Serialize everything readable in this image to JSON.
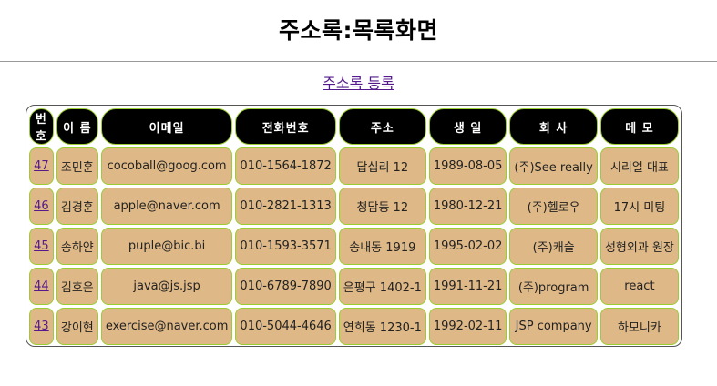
{
  "page": {
    "title": "주소록:목록화면",
    "register_link": "주소록 등록"
  },
  "table": {
    "headers": [
      "번호",
      "이 름",
      "이메일",
      "전화번호",
      "주소",
      "생 일",
      "회 사",
      "메 모"
    ],
    "rows": [
      {
        "no": "47",
        "name": "조민훈",
        "email": "cocoball@goog.com",
        "phone": "010-1564-1872",
        "address": "답십리 12",
        "birthday": "1989-08-05",
        "company": "(주)See really",
        "memo": "시리얼 대표"
      },
      {
        "no": "46",
        "name": "김경훈",
        "email": "apple@naver.com",
        "phone": "010-2821-1313",
        "address": "청담동 12",
        "birthday": "1980-12-21",
        "company": "(주)헬로우",
        "memo": "17시 미팅"
      },
      {
        "no": "45",
        "name": "송하얀",
        "email": "puple@bic.bi",
        "phone": "010-1593-3571",
        "address": "송내동 1919",
        "birthday": "1995-02-02",
        "company": "(주)캐슬",
        "memo": "성형외과 원장"
      },
      {
        "no": "44",
        "name": "김호은",
        "email": "java@js.jsp",
        "phone": "010-6789-7890",
        "address": "은평구 1402-1",
        "birthday": "1991-11-21",
        "company": "(주)program",
        "memo": "react"
      },
      {
        "no": "43",
        "name": "강이현",
        "email": "exercise@naver.com",
        "phone": "010-5044-4646",
        "address": "연희동 1230-1",
        "birthday": "1992-02-11",
        "company": "JSP company",
        "memo": "하모니카"
      }
    ]
  },
  "colors": {
    "header_bg": "#000000",
    "header_text": "#ffffff",
    "cell_bg": "#deb887",
    "cell_border": "#9acd32",
    "link": "#551a8b"
  }
}
